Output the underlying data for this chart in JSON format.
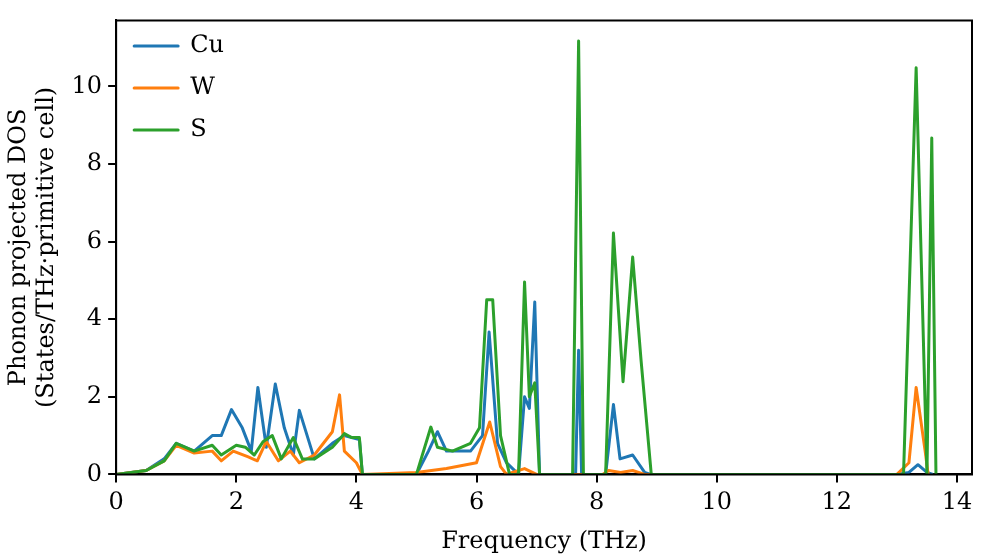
{
  "chart_data": {
    "type": "line",
    "xlabel": "Frequency (THz)",
    "ylabel": "Phonon projected DOS\n(States/THz·primitive cell)",
    "xlim": [
      0,
      14.25
    ],
    "ylim": [
      0,
      11.7
    ],
    "xticks": [
      0,
      2,
      4,
      6,
      8,
      10,
      12,
      14
    ],
    "yticks": [
      0,
      2,
      4,
      6,
      8,
      10
    ],
    "legend": "top left",
    "marker": "none",
    "line_style": "solid",
    "series": [
      {
        "name": "Cu",
        "color": "#1f77b4",
        "x": [
          0,
          0.5,
          0.8,
          1.0,
          1.3,
          1.6,
          1.75,
          1.92,
          2.1,
          2.25,
          2.36,
          2.5,
          2.65,
          2.8,
          2.95,
          3.05,
          3.3,
          3.6,
          3.8,
          3.92,
          4.05,
          4.1,
          5.0,
          5.2,
          5.35,
          5.5,
          5.9,
          6.1,
          6.21,
          6.35,
          6.5,
          6.7,
          6.8,
          6.88,
          6.97,
          7.05,
          7.6,
          7.65,
          7.7,
          7.75,
          8.15,
          8.28,
          8.39,
          8.6,
          8.8,
          8.9,
          13.0,
          13.2,
          13.35,
          13.5,
          13.6
        ],
        "values": [
          0,
          0.1,
          0.4,
          0.8,
          0.6,
          1.0,
          1.0,
          1.67,
          1.2,
          0.6,
          2.24,
          0.7,
          2.33,
          1.2,
          0.5,
          1.65,
          0.4,
          0.8,
          1.0,
          0.95,
          0.9,
          0,
          0,
          0.6,
          1.1,
          0.6,
          0.6,
          1.0,
          3.67,
          0.8,
          0.3,
          0,
          2.0,
          1.7,
          4.44,
          0,
          0,
          0,
          3.2,
          0,
          0,
          1.8,
          0.4,
          0.5,
          0.05,
          0,
          0,
          0.05,
          0.25,
          0.05,
          0
        ]
      },
      {
        "name": "W",
        "color": "#ff7f0e",
        "x": [
          0,
          0.5,
          0.8,
          1.0,
          1.3,
          1.6,
          1.75,
          1.95,
          2.2,
          2.35,
          2.5,
          2.7,
          2.9,
          3.05,
          3.3,
          3.6,
          3.72,
          3.8,
          4.0,
          4.1,
          5.0,
          5.5,
          6.0,
          6.22,
          6.4,
          6.5,
          6.8,
          7.0,
          8.1,
          8.2,
          8.4,
          8.6,
          8.8,
          13.0,
          13.2,
          13.32,
          13.47,
          13.52
        ],
        "values": [
          0,
          0.1,
          0.35,
          0.75,
          0.55,
          0.6,
          0.35,
          0.6,
          0.45,
          0.35,
          0.85,
          0.35,
          0.6,
          0.3,
          0.5,
          1.1,
          2.05,
          0.6,
          0.3,
          0,
          0.05,
          0.15,
          0.3,
          1.35,
          0.2,
          0,
          0.15,
          0,
          0,
          0.1,
          0.05,
          0.1,
          0,
          0,
          0.3,
          2.24,
          0.6,
          0
        ]
      },
      {
        "name": "S",
        "color": "#2ca02c",
        "x": [
          0,
          0.5,
          0.8,
          1.0,
          1.3,
          1.6,
          1.75,
          2.0,
          2.15,
          2.3,
          2.45,
          2.6,
          2.75,
          2.95,
          3.1,
          3.3,
          3.6,
          3.8,
          3.92,
          4.05,
          4.1,
          5.0,
          5.24,
          5.35,
          5.6,
          5.9,
          6.05,
          6.17,
          6.27,
          6.4,
          6.55,
          6.7,
          6.8,
          6.88,
          6.97,
          7.05,
          7.6,
          7.7,
          7.78,
          8.15,
          8.28,
          8.44,
          8.6,
          8.74,
          8.91,
          13.11,
          13.32,
          13.5,
          13.58,
          13.65
        ],
        "values": [
          0,
          0.1,
          0.35,
          0.8,
          0.6,
          0.75,
          0.5,
          0.75,
          0.7,
          0.5,
          0.85,
          1.0,
          0.4,
          0.95,
          0.4,
          0.4,
          0.7,
          1.05,
          0.95,
          0.95,
          0,
          0,
          1.22,
          0.7,
          0.6,
          0.8,
          1.2,
          4.5,
          4.5,
          1.0,
          0,
          0,
          4.96,
          2.0,
          2.36,
          0,
          0,
          11.17,
          0,
          0,
          6.22,
          2.39,
          5.6,
          2.94,
          0,
          0,
          10.48,
          0,
          8.67,
          0
        ]
      }
    ]
  }
}
